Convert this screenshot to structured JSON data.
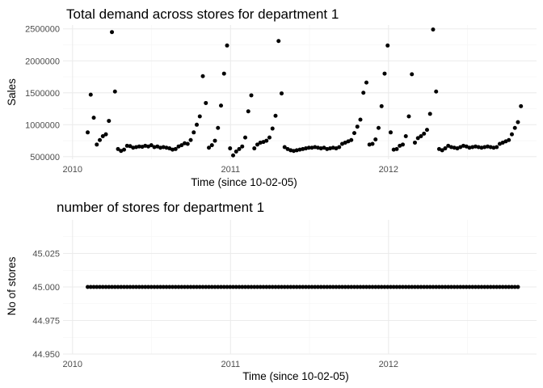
{
  "chart_data": [
    {
      "type": "scatter",
      "title": "Total demand across stores for department 1",
      "xlabel": "Time (since 10-02-05)",
      "ylabel": "Sales",
      "xlim": [
        "2009-12-10",
        "2012-12-08"
      ],
      "ylim": [
        460000,
        2560000
      ],
      "x_ticks": [
        {
          "value": "2010-01-01",
          "label": "2010"
        },
        {
          "value": "2011-01-01",
          "label": "2011"
        },
        {
          "value": "2012-01-01",
          "label": "2012"
        }
      ],
      "y_ticks": [
        {
          "value": 500000,
          "label": "500000"
        },
        {
          "value": 1000000,
          "label": "1000000"
        },
        {
          "value": 1500000,
          "label": "1500000"
        },
        {
          "value": 2000000,
          "label": "2000000"
        },
        {
          "value": 2500000,
          "label": "2500000"
        }
      ],
      "grid": true,
      "series": [
        {
          "start": "2010-02-05",
          "step_days": 7,
          "values": [
            880000,
            1470000,
            1110000,
            690000,
            760000,
            820000,
            850000,
            1060000,
            2450000,
            1520000,
            620000,
            590000,
            610000,
            670000,
            665000,
            640000,
            650000,
            660000,
            655000,
            670000,
            660000,
            680000,
            650000,
            660000,
            640000,
            650000,
            640000,
            630000,
            610000,
            620000,
            660000,
            680000,
            710000,
            700000,
            760000,
            880000,
            1000000,
            1130000,
            1760000,
            1340000,
            640000,
            680000,
            750000,
            950000,
            1300000,
            1800000,
            2240000,
            630000,
            520000,
            580000,
            620000,
            660000,
            800000,
            1210000,
            1460000,
            630000,
            690000,
            720000,
            730000,
            750000,
            800000,
            940000,
            1140000,
            2310000,
            1490000,
            650000,
            620000,
            600000,
            590000,
            600000,
            610000,
            620000,
            630000,
            640000,
            640000,
            650000,
            640000,
            630000,
            640000,
            620000,
            630000,
            640000,
            630000,
            650000,
            700000,
            720000,
            740000,
            760000,
            870000,
            970000,
            1080000,
            1500000,
            1660000,
            690000,
            700000,
            770000,
            950000,
            1290000,
            1800000,
            2240000,
            880000,
            610000,
            620000,
            670000,
            690000,
            820000,
            1130000,
            1790000,
            720000,
            790000,
            820000,
            860000,
            920000,
            1170000,
            2490000,
            1520000,
            620000,
            600000,
            630000,
            670000,
            650000,
            640000,
            630000,
            650000,
            670000,
            660000,
            640000,
            650000,
            660000,
            650000,
            640000,
            650000,
            660000,
            650000,
            640000,
            650000,
            700000,
            720000,
            740000,
            760000,
            850000,
            950000,
            1040000,
            1290000
          ]
        }
      ]
    },
    {
      "type": "scatter",
      "title": "number of stores for department 1",
      "xlabel": "Time (since 10-02-05)",
      "ylabel": "No of stores",
      "xlim": [
        "2009-12-10",
        "2012-12-08"
      ],
      "ylim": [
        44.95,
        45.05
      ],
      "x_ticks": [
        {
          "value": "2010-01-01",
          "label": "2010"
        },
        {
          "value": "2011-01-01",
          "label": "2011"
        },
        {
          "value": "2012-01-01",
          "label": "2012"
        }
      ],
      "y_ticks": [
        {
          "value": 44.95,
          "label": "44.950"
        },
        {
          "value": 44.975,
          "label": "44.975"
        },
        {
          "value": 45.0,
          "label": "45.000"
        },
        {
          "value": 45.025,
          "label": "45.025"
        }
      ],
      "grid": true,
      "series": [
        {
          "start": "2010-02-05",
          "step_days": 7,
          "count": 143,
          "value": 45
        }
      ]
    }
  ]
}
